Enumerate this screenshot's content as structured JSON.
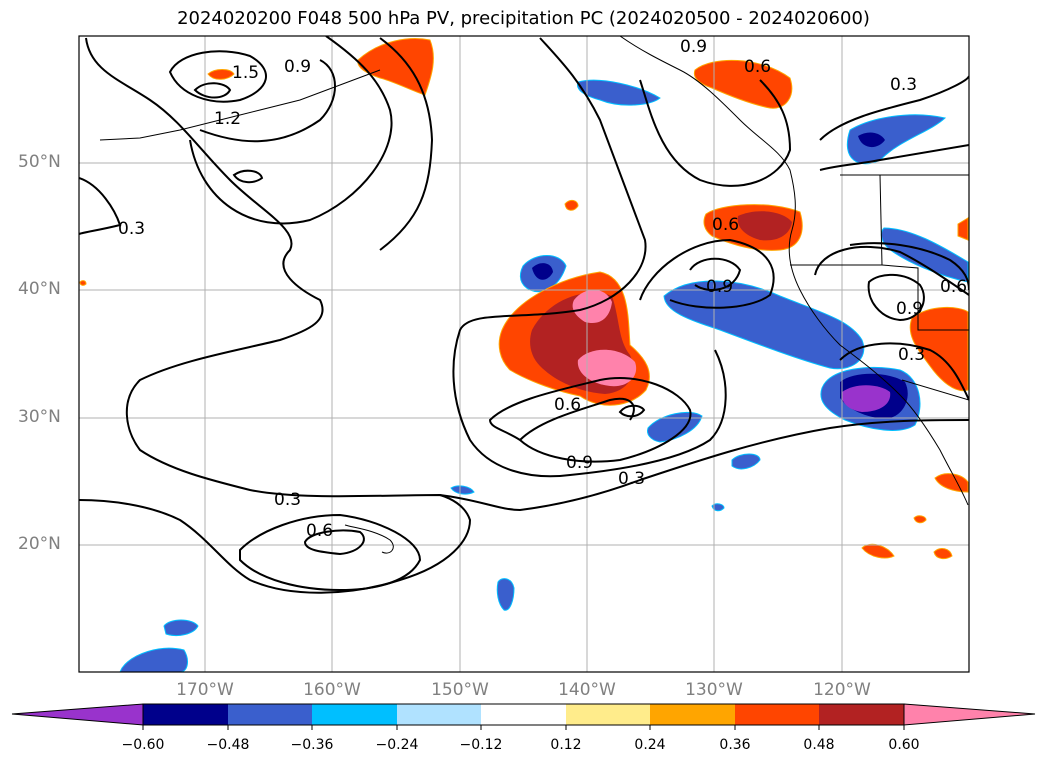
{
  "title": "2024020200 F048 500 hPa PV, precipitation PC (2024020500 - 2024020600)",
  "lat_labels": [
    {
      "label": "50°N",
      "value": 50
    },
    {
      "label": "40°N",
      "value": 40
    },
    {
      "label": "30°N",
      "value": 30
    },
    {
      "label": "20°N",
      "value": 20
    }
  ],
  "lon_labels": [
    {
      "label": "170°W",
      "value": -170
    },
    {
      "label": "160°W",
      "value": -160
    },
    {
      "label": "150°W",
      "value": -150
    },
    {
      "label": "140°W",
      "value": -140
    },
    {
      "label": "130°W",
      "value": -130
    },
    {
      "label": "120°W",
      "value": -120
    }
  ],
  "colorbar": {
    "ticks": [
      "−0.60",
      "−0.48",
      "−0.36",
      "−0.24",
      "−0.12",
      "0.12",
      "0.24",
      "0.36",
      "0.48",
      "0.60"
    ],
    "colors": [
      "#9933cc",
      "#00008b",
      "#3a5fcd",
      "#00bfff",
      "#b0e2ff",
      "#ffffff",
      "#ffec8b",
      "#ffa500",
      "#ff4500",
      "#b22222",
      "#ff82ab"
    ]
  },
  "contour_labels": [
    "0.9",
    "0.6",
    "0.3",
    "1.5",
    "1.2",
    "0.9",
    "0.3",
    "0.6",
    "0.9",
    "0.9",
    "0.6",
    "0.3",
    "0.6",
    "0.9",
    "0.3",
    "0.3",
    "0.6"
  ]
}
